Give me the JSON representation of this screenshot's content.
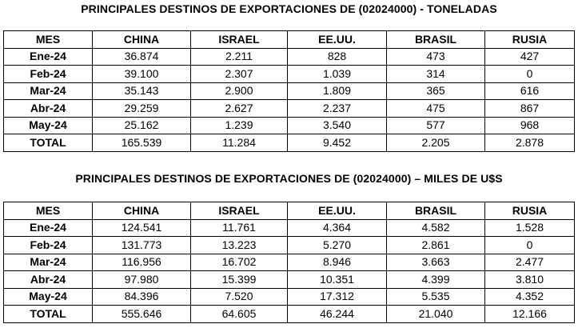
{
  "table1": {
    "title": "PRINCIPALES DESTINOS DE EXPORTACIONES DE (02024000) - TONELADAS",
    "headers": [
      "MES",
      "CHINA",
      "ISRAEL",
      "EE.UU.",
      "BRASIL",
      "RUSIA"
    ],
    "rows": [
      [
        "Ene-24",
        "36.874",
        "2.211",
        "828",
        "473",
        "427"
      ],
      [
        "Feb-24",
        "39.100",
        "2.307",
        "1.039",
        "314",
        "0"
      ],
      [
        "Mar-24",
        "35.143",
        "2.900",
        "1.809",
        "365",
        "616"
      ],
      [
        "Abr-24",
        "29.259",
        "2.627",
        "2.237",
        "475",
        "867"
      ],
      [
        "May-24",
        "25.162",
        "1.239",
        "3.540",
        "577",
        "968"
      ],
      [
        "TOTAL",
        "165.539",
        "11.284",
        "9.452",
        "2.205",
        "2.878"
      ]
    ]
  },
  "table2": {
    "title": "PRINCIPALES DESTINOS DE EXPORTACIONES DE (02024000) – MILES DE U$S",
    "headers": [
      "MES",
      "CHINA",
      "ISRAEL",
      "EE.UU.",
      "BRASIL",
      "RUSIA"
    ],
    "rows": [
      [
        "Ene-24",
        "124.541",
        "11.761",
        "4.364",
        "4.582",
        "1.528"
      ],
      [
        "Feb-24",
        "131.773",
        "13.223",
        "5.270",
        "2.861",
        "0"
      ],
      [
        "Mar-24",
        "116.956",
        "16.702",
        "8.946",
        "3.663",
        "2.477"
      ],
      [
        "Abr-24",
        "97.980",
        "15.399",
        "10.351",
        "4.399",
        "3.810"
      ],
      [
        "May-24",
        "84.396",
        "7.520",
        "17.312",
        "5.535",
        "4.352"
      ],
      [
        "TOTAL",
        "555.646",
        "64.605",
        "46.244",
        "21.040",
        "12.166"
      ]
    ]
  }
}
